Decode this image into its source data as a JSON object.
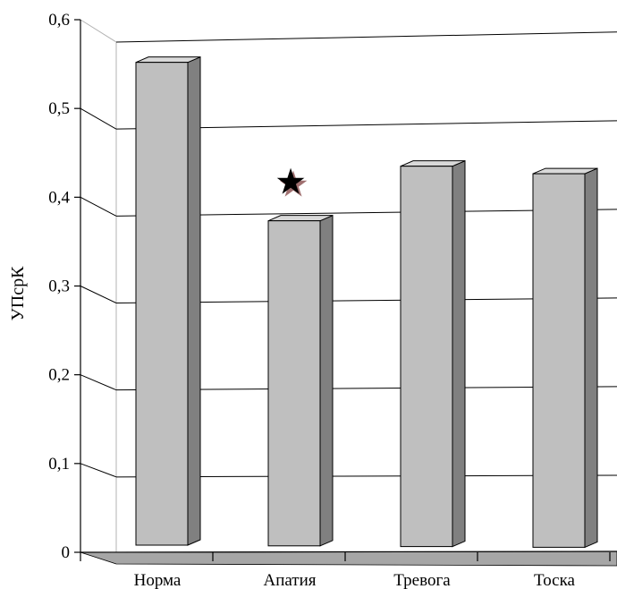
{
  "chart_data": {
    "type": "bar",
    "style": "3d-column",
    "ylabel": "УПсрК",
    "xlabel": "",
    "title": "",
    "ylim": [
      0,
      0.6
    ],
    "yticks": [
      "0",
      "0,1",
      "0,2",
      "0,3",
      "0,4",
      "0,5",
      "0,6"
    ],
    "categories": [
      "Норма",
      "Апатия",
      "Тревога",
      "Тоска"
    ],
    "values": [
      0.56,
      0.38,
      0.44,
      0.43
    ],
    "grid": true,
    "legend": "none",
    "annotations": [
      {
        "category": "Апатия",
        "symbol": "★",
        "meaning": "marker above bar"
      }
    ],
    "colors": {
      "bar_front": "#bfbfbf",
      "bar_side": "#808080",
      "bar_top": "#d9d9d9",
      "floor": "#a6a6a6",
      "marker": "#000000",
      "marker_shadow": "#a07070"
    }
  }
}
